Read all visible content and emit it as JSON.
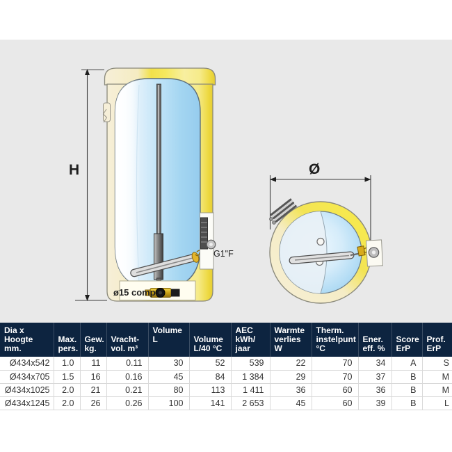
{
  "colors": {
    "panel_background": "#e9e9e9",
    "header_navy": "#0d2440",
    "shell_yellow": "#f2e14c",
    "shell_cream": "#f5efd6",
    "tank_blue": "#a8d6f2",
    "dimension_line": "#3c3c3c",
    "row_divider": "#d9d9d9"
  },
  "diagram": {
    "front_view": {
      "height_dimension_label": "H",
      "fitting_label": "G1\"F",
      "compression_fitting_label": "ø15 comp."
    },
    "top_view": {
      "diameter_dimension_label": "Ø"
    }
  },
  "table": {
    "columns": [
      "Dia x Hoogte\nmm.",
      "Max.\npers.",
      "Gew.\nkg.",
      "Vracht-\nvol. m³",
      "Volume L",
      "Volume\nL/40 °C",
      "AEC\nkWh/\njaar",
      "Warmte\nverlies W",
      "Therm.\ninstelpunt\n°C",
      "Ener.\neff. %",
      "Score\nErP",
      "Prof.\nErP"
    ],
    "rows": [
      [
        "Ø434x542",
        "1.0",
        "11",
        "0.11",
        "30",
        "52",
        "539",
        "22",
        "70",
        "34",
        "A",
        "S"
      ],
      [
        "Ø434x705",
        "1.5",
        "16",
        "0.16",
        "45",
        "84",
        "1 384",
        "29",
        "70",
        "37",
        "B",
        "M"
      ],
      [
        "Ø434x1025",
        "2.0",
        "21",
        "0.21",
        "80",
        "113",
        "1 411",
        "36",
        "60",
        "36",
        "B",
        "M"
      ],
      [
        "Ø434x1245",
        "2.0",
        "26",
        "0.26",
        "100",
        "141",
        "2 653",
        "45",
        "60",
        "39",
        "B",
        "L"
      ]
    ]
  }
}
